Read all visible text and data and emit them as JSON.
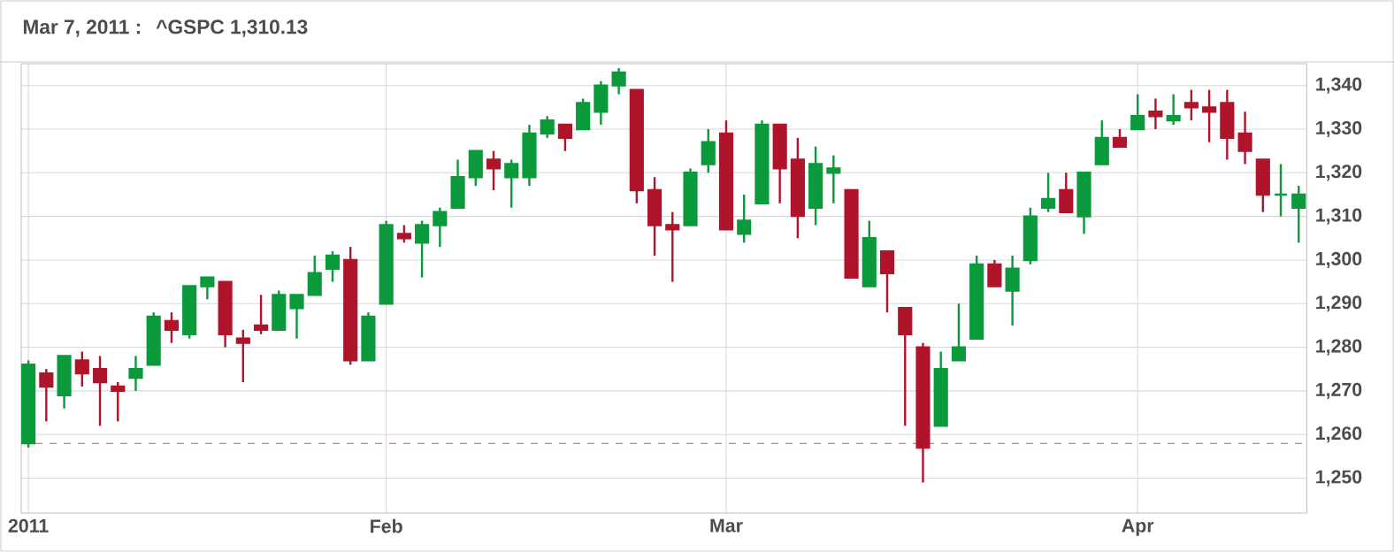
{
  "chart_data": {
    "type": "candlestick",
    "title": "Mar 7, 2011 :",
    "annotations": [
      "^GSPC 1,310.13"
    ],
    "categories": [
      "2011",
      null,
      null,
      null,
      null,
      null,
      null,
      null,
      null,
      null,
      null,
      null,
      null,
      null,
      null,
      null,
      null,
      null,
      null,
      null,
      "Feb",
      null,
      null,
      null,
      null,
      null,
      null,
      null,
      null,
      null,
      null,
      null,
      null,
      null,
      null,
      null,
      null,
      null,
      null,
      "Mar",
      null,
      null,
      null,
      null,
      null,
      null,
      null,
      null,
      null,
      null,
      null,
      null,
      null,
      null,
      null,
      null,
      null,
      null,
      null,
      null,
      null,
      null,
      "Apr",
      null,
      null,
      null,
      null,
      null,
      null,
      null,
      null,
      null
    ],
    "ohlc": [
      [
        1258,
        1277,
        1257,
        1276
      ],
      [
        1274,
        1275,
        1263,
        1271
      ],
      [
        1269,
        1278,
        1266,
        1278
      ],
      [
        1277,
        1279,
        1271,
        1274
      ],
      [
        1275,
        1278,
        1262,
        1272
      ],
      [
        1271,
        1272,
        1263,
        1270
      ],
      [
        1273,
        1278,
        1270,
        1275
      ],
      [
        1276,
        1288,
        1276,
        1287
      ],
      [
        1286,
        1288,
        1281,
        1284
      ],
      [
        1283,
        1294,
        1282,
        1294
      ],
      [
        1294,
        1296,
        1291,
        1296
      ],
      [
        1295,
        1295,
        1280,
        1283
      ],
      [
        1282,
        1284,
        1272,
        1281
      ],
      [
        1285,
        1292,
        1283,
        1284
      ],
      [
        1284,
        1293,
        1284,
        1292
      ],
      [
        1289,
        1292,
        1282,
        1292
      ],
      [
        1292,
        1301,
        1292,
        1297
      ],
      [
        1298,
        1302,
        1295,
        1301
      ],
      [
        1300,
        1303,
        1276,
        1277
      ],
      [
        1277,
        1288,
        1277,
        1287
      ],
      [
        1290,
        1309,
        1290,
        1308
      ],
      [
        1306,
        1308,
        1304,
        1305
      ],
      [
        1304,
        1309,
        1296,
        1308
      ],
      [
        1308,
        1312,
        1303,
        1311
      ],
      [
        1312,
        1323,
        1312,
        1319
      ],
      [
        1319,
        1325,
        1317,
        1325
      ],
      [
        1323,
        1325,
        1316,
        1321
      ],
      [
        1319,
        1323,
        1312,
        1322
      ],
      [
        1319,
        1331,
        1317,
        1329
      ],
      [
        1329,
        1333,
        1328,
        1332
      ],
      [
        1331,
        1331,
        1325,
        1328
      ],
      [
        1330,
        1337,
        1330,
        1336
      ],
      [
        1334,
        1341,
        1331,
        1340
      ],
      [
        1340,
        1344,
        1338,
        1343
      ],
      [
        1339,
        1339,
        1313,
        1316
      ],
      [
        1316,
        1319,
        1301,
        1308
      ],
      [
        1308,
        1311,
        1295,
        1307
      ],
      [
        1308,
        1321,
        1308,
        1320
      ],
      [
        1322,
        1330,
        1320,
        1327
      ],
      [
        1329,
        1332,
        1307,
        1307
      ],
      [
        1306,
        1315,
        1304,
        1309
      ],
      [
        1313,
        1332,
        1313,
        1331
      ],
      [
        1331,
        1331,
        1313,
        1321
      ],
      [
        1323,
        1328,
        1305,
        1310.13
      ],
      [
        1312,
        1326,
        1308,
        1322
      ],
      [
        1320,
        1324,
        1313,
        1321
      ],
      [
        1316,
        1316,
        1296,
        1296
      ],
      [
        1294,
        1309,
        1294,
        1305
      ],
      [
        1302,
        1302,
        1288,
        1297
      ],
      [
        1289,
        1289,
        1262,
        1283
      ],
      [
        1280,
        1281,
        1249,
        1257
      ],
      [
        1262,
        1279,
        1262,
        1275
      ],
      [
        1277,
        1290,
        1277,
        1280
      ],
      [
        1282,
        1301,
        1282,
        1299
      ],
      [
        1299,
        1300,
        1294,
        1294
      ],
      [
        1293,
        1301,
        1285,
        1298
      ],
      [
        1300,
        1312,
        1299,
        1310
      ],
      [
        1312,
        1320,
        1311,
        1314
      ],
      [
        1316,
        1320,
        1311,
        1311
      ],
      [
        1310,
        1320,
        1306,
        1320
      ],
      [
        1322,
        1332,
        1322,
        1328
      ],
      [
        1328,
        1330,
        1326,
        1326
      ],
      [
        1330,
        1338,
        1330,
        1333
      ],
      [
        1334,
        1337,
        1330,
        1333
      ],
      [
        1332,
        1338,
        1331,
        1333
      ],
      [
        1336,
        1339,
        1332,
        1335
      ],
      [
        1335,
        1339,
        1327,
        1334
      ],
      [
        1336,
        1339,
        1323,
        1328
      ],
      [
        1329,
        1334,
        1322,
        1325
      ],
      [
        1323,
        1323,
        1311,
        1315
      ],
      [
        1315,
        1322,
        1310,
        1315
      ],
      [
        1312,
        1317,
        1304,
        1315
      ]
    ],
    "colors": [
      "#0a9a3c",
      "#b0142a",
      "#0a9a3c",
      "#b0142a",
      "#b0142a",
      "#b0142a",
      "#0a9a3c",
      "#0a9a3c",
      "#b0142a",
      "#0a9a3c",
      "#0a9a3c",
      "#b0142a",
      "#b0142a",
      "#b0142a",
      "#0a9a3c",
      "#0a9a3c",
      "#0a9a3c",
      "#0a9a3c",
      "#b0142a",
      "#0a9a3c",
      "#0a9a3c",
      "#b0142a",
      "#0a9a3c",
      "#0a9a3c",
      "#0a9a3c",
      "#0a9a3c",
      "#b0142a",
      "#0a9a3c",
      "#0a9a3c",
      "#0a9a3c",
      "#b0142a",
      "#0a9a3c",
      "#0a9a3c",
      "#0a9a3c",
      "#b0142a",
      "#b0142a",
      "#b0142a",
      "#0a9a3c",
      "#0a9a3c",
      "#b0142a",
      "#0a9a3c",
      "#0a9a3c",
      "#b0142a",
      "#b0142a",
      "#0a9a3c",
      "#0a9a3c",
      "#b0142a",
      "#0a9a3c",
      "#b0142a",
      "#b0142a",
      "#b0142a",
      "#0a9a3c",
      "#0a9a3c",
      "#0a9a3c",
      "#b0142a",
      "#0a9a3c",
      "#0a9a3c",
      "#0a9a3c",
      "#b0142a",
      "#0a9a3c",
      "#0a9a3c",
      "#b0142a",
      "#0a9a3c",
      "#b0142a",
      "#0a9a3c",
      "#b0142a",
      "#b0142a",
      "#b0142a",
      "#b0142a",
      "#b0142a",
      "#0a9a3c",
      "#0a9a3c"
    ],
    "ylim": [
      1242,
      1345
    ],
    "yticks": [
      {
        "value": 1250,
        "label": "1,250"
      },
      {
        "value": 1260,
        "label": "1,260"
      },
      {
        "value": 1270,
        "label": "1,270"
      },
      {
        "value": 1280,
        "label": "1,280"
      },
      {
        "value": 1290,
        "label": "1,290"
      },
      {
        "value": 1300,
        "label": "1,300"
      },
      {
        "value": 1310,
        "label": "1,310"
      },
      {
        "value": 1320,
        "label": "1,320"
      },
      {
        "value": 1330,
        "label": "1,330"
      },
      {
        "value": 1340,
        "label": "1,340"
      }
    ],
    "ref_lines": [
      {
        "axis": "y",
        "value": 1258,
        "color": "#e05050",
        "line_style": "dashed"
      }
    ],
    "grid": true
  }
}
